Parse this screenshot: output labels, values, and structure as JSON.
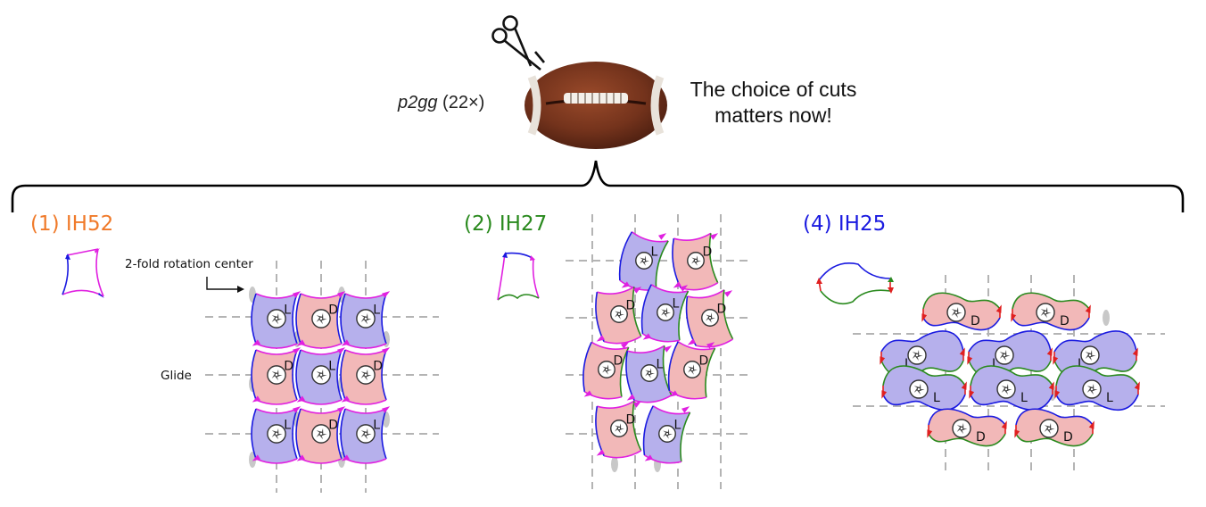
{
  "header": {
    "group_italic": "p2gg",
    "group_rest": " (22×)",
    "note_line1": "The choice of cuts",
    "note_line2": "matters now!"
  },
  "panels": [
    {
      "title": "(1) IH52",
      "color": "#f07a2a"
    },
    {
      "title": "(2) IH27",
      "color": "#2a8a1e"
    },
    {
      "title": "(4) IH25",
      "color": "#1a1ae0"
    }
  ],
  "annotations": {
    "rotation_center": "2-fold rotation center",
    "glide": "Glide"
  },
  "tile_letters": {
    "left": "L",
    "right": "D"
  },
  "colors": {
    "tile_blue": "#b6b0ec",
    "tile_red": "#f2b8b8",
    "edge_blue": "#1a1ae0",
    "edge_magenta": "#e020e0",
    "edge_green": "#2a8a1e",
    "edge_red": "#e02020",
    "grid": "#b4b4b4",
    "football": "#7a3a22"
  }
}
